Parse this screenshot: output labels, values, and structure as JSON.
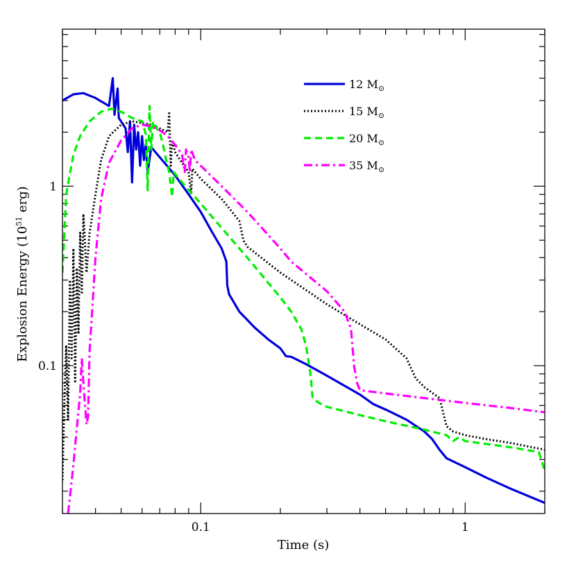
{
  "chart_data": {
    "type": "line",
    "title": "",
    "xlabel": "Time (s)",
    "ylabel_main": "Explosion Energy (10",
    "ylabel_exp": "51",
    "ylabel_end": " erg)",
    "xscale": "log",
    "yscale": "log",
    "xlim": [
      0.03,
      2.0
    ],
    "ylim": [
      0.015,
      7.5
    ],
    "grid": false,
    "legend_position": "top-right",
    "x_ticks": [
      {
        "value": 0.1,
        "label": "0.1"
      },
      {
        "value": 1,
        "label": "1"
      }
    ],
    "y_ticks": [
      {
        "value": 0.1,
        "label": "0.1"
      },
      {
        "value": 1,
        "label": "1"
      }
    ],
    "series": [
      {
        "name": "12 M",
        "name_sub": "⊙",
        "color": "#0000dd",
        "dash": "solid",
        "points": [
          [
            0.03,
            3.0
          ],
          [
            0.033,
            3.25
          ],
          [
            0.036,
            3.3
          ],
          [
            0.04,
            3.1
          ],
          [
            0.045,
            2.8
          ],
          [
            0.0465,
            4.0
          ],
          [
            0.0472,
            2.5
          ],
          [
            0.0485,
            3.5
          ],
          [
            0.049,
            2.4
          ],
          [
            0.052,
            2.1
          ],
          [
            0.053,
            1.55
          ],
          [
            0.054,
            2.3
          ],
          [
            0.055,
            1.05
          ],
          [
            0.056,
            2.2
          ],
          [
            0.057,
            1.6
          ],
          [
            0.058,
            2.0
          ],
          [
            0.059,
            1.3
          ],
          [
            0.06,
            1.9
          ],
          [
            0.061,
            1.4
          ],
          [
            0.062,
            1.7
          ],
          [
            0.063,
            1.2
          ],
          [
            0.065,
            1.65
          ],
          [
            0.07,
            1.45
          ],
          [
            0.08,
            1.15
          ],
          [
            0.09,
            0.9
          ],
          [
            0.1,
            0.72
          ],
          [
            0.11,
            0.56
          ],
          [
            0.12,
            0.45
          ],
          [
            0.125,
            0.38
          ],
          [
            0.126,
            0.28
          ],
          [
            0.128,
            0.25
          ],
          [
            0.14,
            0.2
          ],
          [
            0.16,
            0.163
          ],
          [
            0.18,
            0.14
          ],
          [
            0.2,
            0.125
          ],
          [
            0.21,
            0.113
          ],
          [
            0.22,
            0.112
          ],
          [
            0.25,
            0.102
          ],
          [
            0.3,
            0.088
          ],
          [
            0.4,
            0.069
          ],
          [
            0.45,
            0.061
          ],
          [
            0.5,
            0.057
          ],
          [
            0.6,
            0.05
          ],
          [
            0.7,
            0.043
          ],
          [
            0.75,
            0.039
          ],
          [
            0.8,
            0.034
          ],
          [
            0.85,
            0.0305
          ],
          [
            1.0,
            0.0272
          ],
          [
            1.2,
            0.0238
          ],
          [
            1.5,
            0.0205
          ],
          [
            2.0,
            0.0172
          ]
        ]
      },
      {
        "name": "15 M",
        "name_sub": "⊙",
        "color": "#000000",
        "dash": "dotted",
        "points": [
          [
            0.03,
            0.023
          ],
          [
            0.0305,
            0.06
          ],
          [
            0.031,
            0.13
          ],
          [
            0.0315,
            0.05
          ],
          [
            0.032,
            0.3
          ],
          [
            0.0325,
            0.11
          ],
          [
            0.033,
            0.45
          ],
          [
            0.0335,
            0.08
          ],
          [
            0.034,
            0.35
          ],
          [
            0.0345,
            0.15
          ],
          [
            0.035,
            0.55
          ],
          [
            0.0355,
            0.25
          ],
          [
            0.036,
            0.7
          ],
          [
            0.037,
            0.33
          ],
          [
            0.038,
            0.55
          ],
          [
            0.04,
            0.9
          ],
          [
            0.042,
            1.4
          ],
          [
            0.045,
            1.9
          ],
          [
            0.05,
            2.2
          ],
          [
            0.055,
            2.3
          ],
          [
            0.06,
            2.25
          ],
          [
            0.065,
            2.2
          ],
          [
            0.07,
            2.1
          ],
          [
            0.075,
            2.0
          ],
          [
            0.076,
            2.55
          ],
          [
            0.077,
            1.3
          ],
          [
            0.078,
            1.8
          ],
          [
            0.08,
            1.55
          ],
          [
            0.085,
            1.35
          ],
          [
            0.09,
            1.2
          ],
          [
            0.092,
            0.9
          ],
          [
            0.093,
            1.25
          ],
          [
            0.1,
            1.1
          ],
          [
            0.12,
            0.85
          ],
          [
            0.14,
            0.64
          ],
          [
            0.145,
            0.5
          ],
          [
            0.15,
            0.46
          ],
          [
            0.2,
            0.33
          ],
          [
            0.3,
            0.22
          ],
          [
            0.4,
            0.17
          ],
          [
            0.5,
            0.14
          ],
          [
            0.6,
            0.11
          ],
          [
            0.65,
            0.085
          ],
          [
            0.7,
            0.076
          ],
          [
            0.8,
            0.066
          ],
          [
            0.85,
            0.046
          ],
          [
            0.9,
            0.043
          ],
          [
            1.0,
            0.041
          ],
          [
            1.2,
            0.039
          ],
          [
            1.5,
            0.037
          ],
          [
            2.0,
            0.034
          ]
        ]
      },
      {
        "name": "20 M",
        "name_sub": "⊙",
        "color": "#00ee00",
        "dash": "dashed",
        "points": [
          [
            0.03,
            0.33
          ],
          [
            0.031,
            0.9
          ],
          [
            0.033,
            1.5
          ],
          [
            0.035,
            1.9
          ],
          [
            0.038,
            2.3
          ],
          [
            0.042,
            2.6
          ],
          [
            0.046,
            2.7
          ],
          [
            0.05,
            2.6
          ],
          [
            0.055,
            2.4
          ],
          [
            0.06,
            2.3
          ],
          [
            0.062,
            1.95
          ],
          [
            0.063,
            0.95
          ],
          [
            0.064,
            2.8
          ],
          [
            0.065,
            1.6
          ],
          [
            0.066,
            2.3
          ],
          [
            0.068,
            2.1
          ],
          [
            0.07,
            2.0
          ],
          [
            0.072,
            1.7
          ],
          [
            0.074,
            1.4
          ],
          [
            0.076,
            1.2
          ],
          [
            0.078,
            0.87
          ],
          [
            0.079,
            1.2
          ],
          [
            0.085,
            1.05
          ],
          [
            0.1,
            0.8
          ],
          [
            0.15,
            0.4
          ],
          [
            0.2,
            0.24
          ],
          [
            0.22,
            0.2
          ],
          [
            0.24,
            0.16
          ],
          [
            0.25,
            0.13
          ],
          [
            0.26,
            0.09
          ],
          [
            0.265,
            0.066
          ],
          [
            0.28,
            0.062
          ],
          [
            0.3,
            0.059
          ],
          [
            0.4,
            0.053
          ],
          [
            0.5,
            0.049
          ],
          [
            0.7,
            0.044
          ],
          [
            0.85,
            0.041
          ],
          [
            0.9,
            0.038
          ],
          [
            0.95,
            0.04
          ],
          [
            1.0,
            0.038
          ],
          [
            1.5,
            0.035
          ],
          [
            1.9,
            0.033
          ],
          [
            2.0,
            0.026
          ]
        ]
      },
      {
        "name": "35 M",
        "name_sub": "⊙",
        "color": "#ff00ff",
        "dash": "dashdot",
        "points": [
          [
            0.0315,
            0.015
          ],
          [
            0.033,
            0.028
          ],
          [
            0.034,
            0.045
          ],
          [
            0.035,
            0.07
          ],
          [
            0.0355,
            0.11
          ],
          [
            0.036,
            0.08
          ],
          [
            0.0365,
            0.06
          ],
          [
            0.037,
            0.047
          ],
          [
            0.0375,
            0.052
          ],
          [
            0.038,
            0.12
          ],
          [
            0.04,
            0.4
          ],
          [
            0.042,
            0.85
          ],
          [
            0.045,
            1.35
          ],
          [
            0.05,
            1.8
          ],
          [
            0.055,
            2.1
          ],
          [
            0.06,
            2.2
          ],
          [
            0.065,
            2.15
          ],
          [
            0.07,
            2.05
          ],
          [
            0.075,
            1.9
          ],
          [
            0.08,
            1.7
          ],
          [
            0.085,
            1.5
          ],
          [
            0.087,
            1.2
          ],
          [
            0.088,
            1.6
          ],
          [
            0.09,
            1.45
          ],
          [
            0.091,
            1.2
          ],
          [
            0.092,
            1.6
          ],
          [
            0.095,
            1.4
          ],
          [
            0.1,
            1.3
          ],
          [
            0.12,
            1.0
          ],
          [
            0.15,
            0.72
          ],
          [
            0.2,
            0.45
          ],
          [
            0.22,
            0.38
          ],
          [
            0.3,
            0.26
          ],
          [
            0.35,
            0.2
          ],
          [
            0.37,
            0.16
          ],
          [
            0.38,
            0.1
          ],
          [
            0.39,
            0.08
          ],
          [
            0.4,
            0.073
          ],
          [
            0.5,
            0.07
          ],
          [
            0.7,
            0.066
          ],
          [
            1.0,
            0.062
          ],
          [
            1.5,
            0.058
          ],
          [
            2.0,
            0.055
          ]
        ]
      }
    ]
  }
}
